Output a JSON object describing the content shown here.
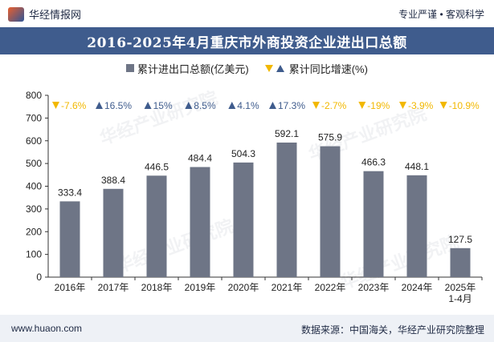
{
  "header": {
    "brand": "华经情报网",
    "tagline": "专业严谨 • 客观科学"
  },
  "chart_data": {
    "type": "bar",
    "title": "2016-2025年4月重庆市外商投资企业进出口总额",
    "categories": [
      "2016年",
      "2017年",
      "2018年",
      "2019年",
      "2020年",
      "2021年",
      "2022年",
      "2023年",
      "2024年",
      "2025年\n1-4月"
    ],
    "series": [
      {
        "name": "累计进出口总额(亿美元)",
        "values": [
          333.4,
          388.4,
          446.5,
          484.4,
          504.3,
          592.1,
          575.9,
          466.3,
          448.1,
          127.5
        ],
        "color": "#6e7586"
      }
    ],
    "growth": {
      "name": "累计同比增速(%)",
      "values": [
        -7.6,
        16.5,
        15,
        8.5,
        4.1,
        17.3,
        -2.7,
        -19,
        -3.9,
        -10.9
      ],
      "labels": [
        "-7.6%",
        "16.5%",
        "15%",
        "8.5%",
        "4.1%",
        "17.3%",
        "-2.7%",
        "-19%",
        "-3.9%",
        "-10.9%"
      ],
      "up_color": "#3f5c8d",
      "down_color": "#f2b800"
    },
    "ylim": [
      0,
      800
    ],
    "yticks": [
      0,
      100,
      200,
      300,
      400,
      500,
      600,
      700,
      800
    ],
    "grid": false
  },
  "legend": {
    "bar_label": "累计进出口总额(亿美元)",
    "growth_label": "累计同比增速(%)"
  },
  "watermark": "华经产业研究院",
  "footer": {
    "website": "www.huaon.com",
    "source": "数据来源：中国海关，华经产业研究院整理"
  }
}
